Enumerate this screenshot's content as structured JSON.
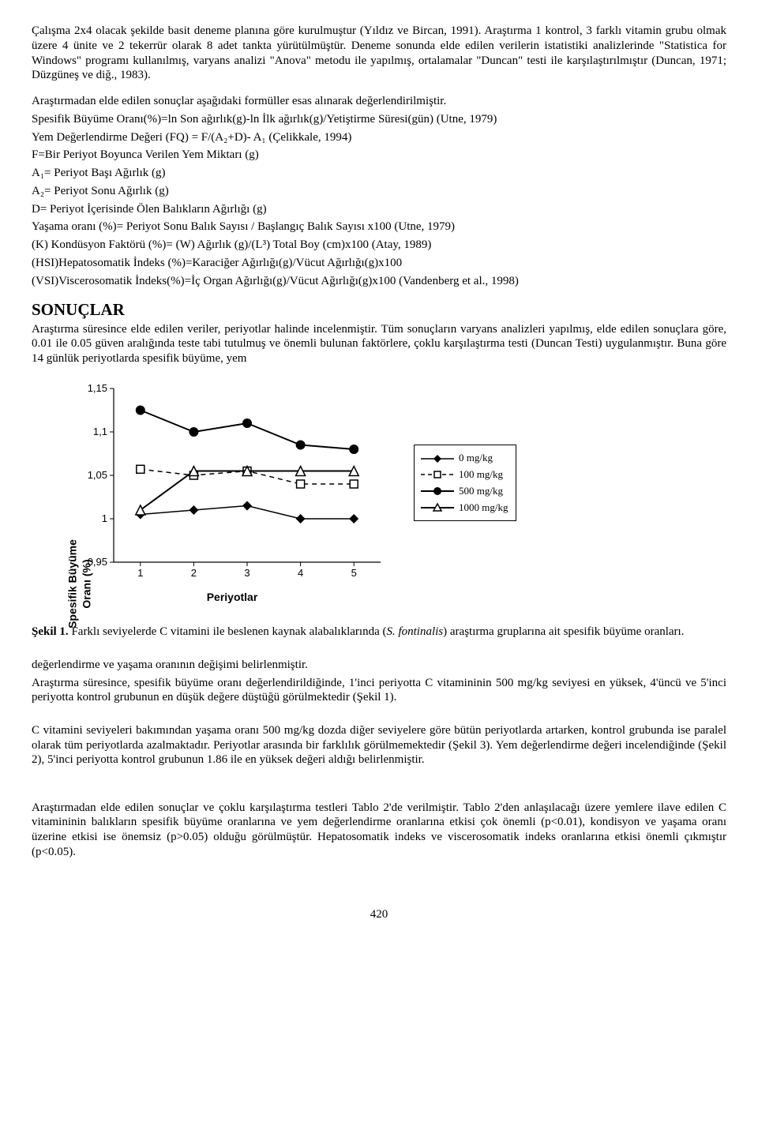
{
  "para1": "Çalışma 2x4 olacak şekilde basit deneme planına göre kurulmuştur (Yıldız ve Bircan, 1991). Araştırma 1 kontrol, 3 farklı vitamin grubu olmak üzere 4 ünite ve 2 tekerrür olarak 8 adet tankta yürütülmüştür. Deneme sonunda elde edilen verilerin istatistiki analizlerinde \"Statistica for Windows\" programı kullanılmış, varyans analizi \"Anova\" metodu ile yapılmış, ortalamalar \"Duncan\" testi ile karşılaştırılmıştır (Duncan, 1971; Düzgüneş ve diğ., 1983).",
  "para2": "Araştırmadan elde edilen sonuçlar aşağıdaki formüller esas alınarak değerlendirilmiştir.",
  "formulas": [
    "Spesifik Büyüme Oranı(%)=ln Son ağırlık(g)-ln İlk ağırlık(g)/Yetiştirme Süresi(gün) (Utne, 1979)",
    "Yem Değerlendirme Değeri (FQ)  = F/(A₂+D)- A₁ (Çelikkale, 1994)",
    "F=Bir Periyot Boyunca Verilen Yem Miktarı (g)",
    "A₁= Periyot Başı Ağırlık (g)",
    "A₂= Periyot Sonu Ağırlık (g)",
    "D= Periyot İçerisinde Ölen Balıkların Ağırlığı (g)",
    "Yaşama oranı (%)= Periyot Sonu Balık Sayısı / Başlangıç Balık Sayısı x100 (Utne, 1979)",
    "(K) Kondüsyon Faktörü (%)=  (W) Ağırlık (g)/(L³) Total Boy (cm)x100 (Atay,  1989)",
    "(HSI)Hepatosomatik İndeks (%)=Karaciğer Ağırlığı(g)/Vücut Ağırlığı(g)x100",
    "(VSI)Viscerosomatik İndeks(%)=İç Organ Ağırlığı(g)/Vücut Ağırlığı(g)x100 (Vandenberg et al., 1998)"
  ],
  "sonuclarHeading": "SONUÇLAR",
  "para3": "Araştırma süresince elde edilen veriler, periyotlar halinde incelenmiştir. Tüm sonuçların varyans analizleri yapılmış, elde edilen sonuçlara göre, 0.01 ile 0.05 güven aralığında teste tabi tutulmuş ve önemli bulunan faktörlere, çoklu karşılaştırma testi (Duncan Testi) uygulanmıştır. Buna göre 14 günlük periyotlarda spesifik büyüme, yem",
  "chart": {
    "type": "line-scatter",
    "categories": [
      "1",
      "2",
      "3",
      "4",
      "5"
    ],
    "ylim": [
      0.95,
      1.15
    ],
    "yticks": [
      "0,95",
      "1",
      "1,05",
      "1,1",
      "1,15"
    ],
    "ylabel": "Spesifik Büyüme Oranı (%)",
    "xlabel": "Periyotlar",
    "plot_bg": "#ffffff",
    "series": [
      {
        "name": "0 mg/kg",
        "marker": "diamond",
        "dash": "none",
        "values": [
          1.005,
          1.01,
          1.015,
          1.0,
          1.0
        ]
      },
      {
        "name": "100 mg/kg",
        "marker": "square-open",
        "dash": "dash",
        "values": [
          1.057,
          1.05,
          1.055,
          1.04,
          1.04
        ]
      },
      {
        "name": "500 mg/kg",
        "marker": "circle",
        "dash": "none",
        "values": [
          1.125,
          1.1,
          1.11,
          1.085,
          1.08
        ]
      },
      {
        "name": "1000 mg/kg",
        "marker": "triangle-open",
        "dash": "none",
        "values": [
          1.01,
          1.055,
          1.055,
          1.055,
          1.055
        ]
      }
    ],
    "stroke": "#000000",
    "marker_size": 6
  },
  "sekil1_bold": "Şekil 1.",
  "sekil1_rest": " Farklı seviyelerde C vitamini ile beslenen kaynak alabalıklarında (",
  "sekil1_italic": "S. fontinalis",
  "sekil1_end": ")      araştırma gruplarına ait spesifik büyüme oranları.",
  "para4": "değerlendirme ve yaşama oranının değişimi belirlenmiştir.",
  "para5": "Araştırma süresince, spesifik büyüme oranı değerlendirildiğinde, 1'inci periyotta C vitamininin 500 mg/kg seviyesi en yüksek, 4'üncü ve 5'inci periyotta kontrol grubunun en düşük değere düştüğü görülmektedir (Şekil 1).",
  "para6": "C vitamini seviyeleri bakımından yaşama oranı 500 mg/kg dozda  diğer seviyelere göre bütün periyotlarda artarken, kontrol grubunda ise paralel olarak tüm periyotlarda azalmaktadır. Periyotlar arasında bir farklılık görülmemektedir (Şekil 3). Yem değerlendirme değeri incelendiğinde (Şekil 2), 5'inci periyotta kontrol grubunun 1.86 ile en yüksek değeri aldığı belirlenmiştir.",
  "para7": "Araştırmadan elde edilen sonuçlar ve çoklu karşılaştırma testleri Tablo 2'de verilmiştir. Tablo 2'den anlaşılacağı üzere yemlere ilave edilen C vitamininin balıkların spesifik büyüme oranlarına ve yem değerlendirme oranlarına etkisi çok önemli (p<0.01), kondisyon ve yaşama oranı üzerine etkisi ise önemsiz (p>0.05) olduğu görülmüştür. Hepatosomatik indeks ve viscerosomatik indeks oranlarına etkisi önemli çıkmıştır (p<0.05).",
  "pageNumber": "420"
}
